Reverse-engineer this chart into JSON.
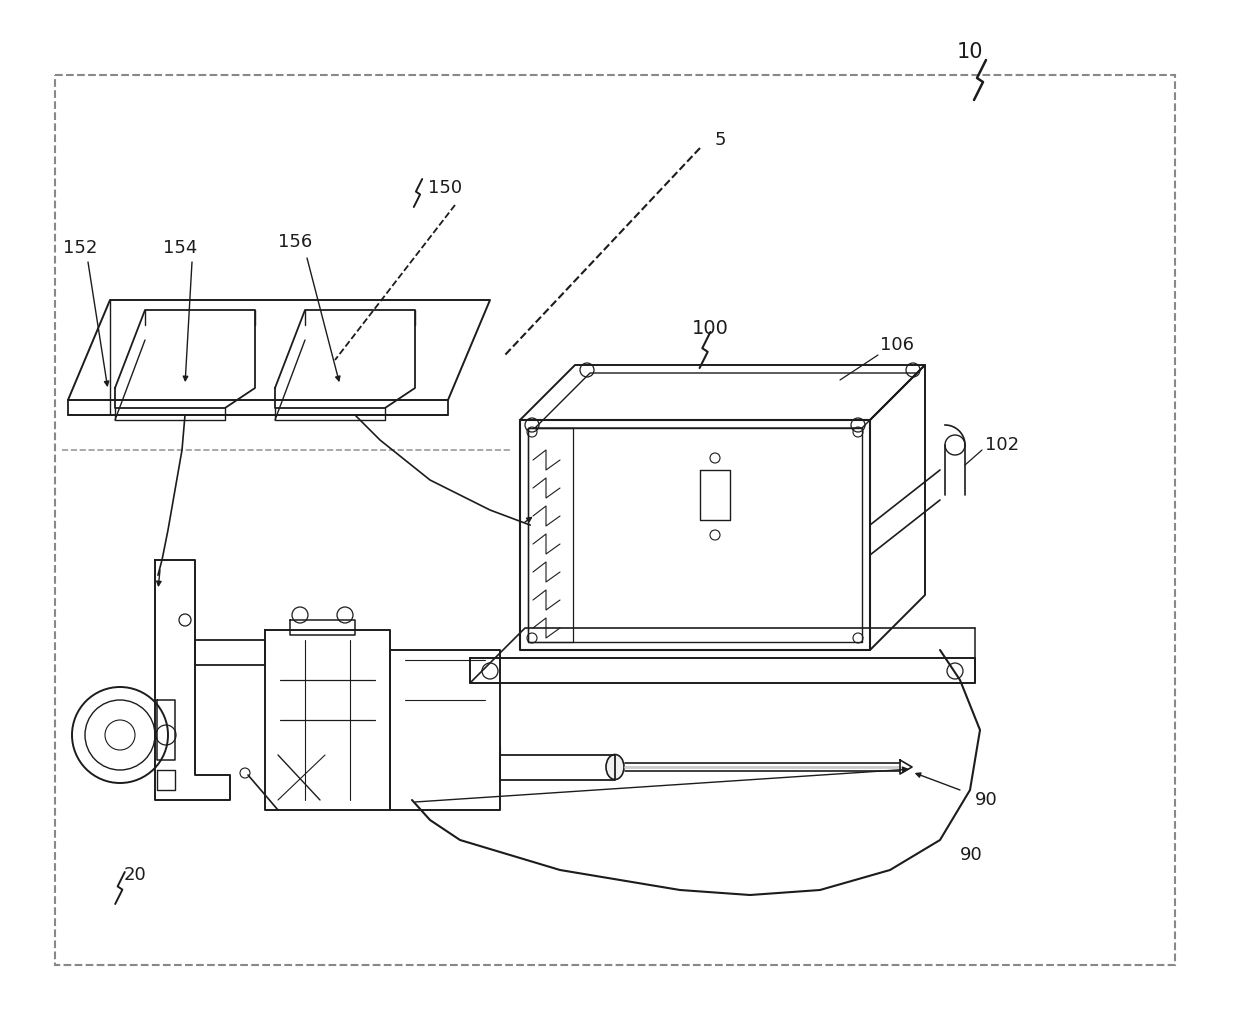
{
  "bg": "#ffffff",
  "lc": "#1c1c1c",
  "fig_w": 12.4,
  "fig_h": 10.24
}
